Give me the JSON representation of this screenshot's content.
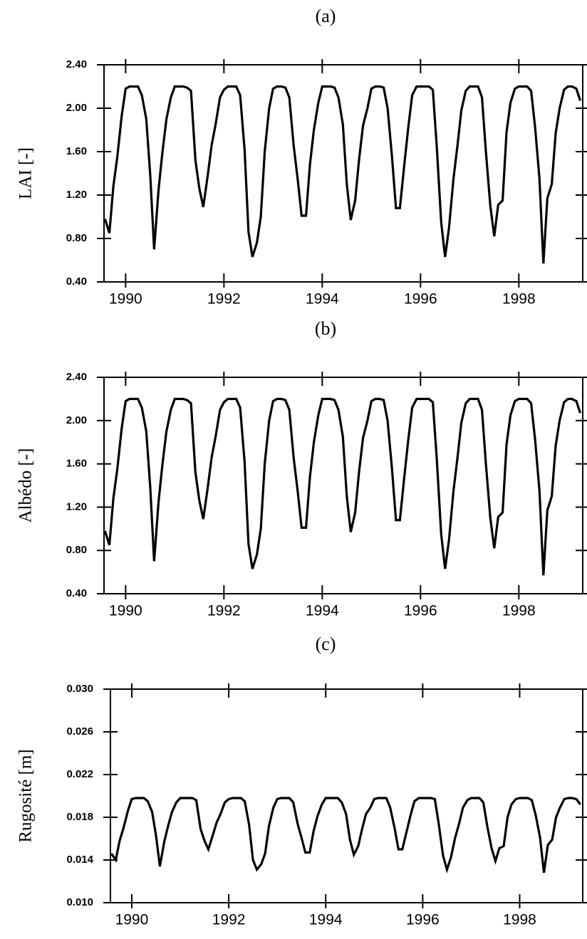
{
  "chart_data": [
    {
      "type": "line",
      "title": "(a)",
      "y_label": "LAI [-]",
      "x": [
        1989.58,
        1989.67,
        1989.75,
        1989.83,
        1989.92,
        1990.0,
        1990.08,
        1990.17,
        1990.25,
        1990.33,
        1990.42,
        1990.5,
        1990.58,
        1990.67,
        1990.75,
        1990.83,
        1990.92,
        1991.0,
        1991.08,
        1991.17,
        1991.25,
        1991.33,
        1991.42,
        1991.5,
        1991.58,
        1991.67,
        1991.75,
        1991.83,
        1991.92,
        1992.0,
        1992.08,
        1992.17,
        1992.25,
        1992.33,
        1992.42,
        1992.5,
        1992.58,
        1992.67,
        1992.75,
        1992.83,
        1992.92,
        1993.0,
        1993.08,
        1993.17,
        1993.25,
        1993.33,
        1993.42,
        1993.5,
        1993.58,
        1993.67,
        1993.75,
        1993.83,
        1993.92,
        1994.0,
        1994.08,
        1994.17,
        1994.25,
        1994.33,
        1994.42,
        1994.5,
        1994.58,
        1994.67,
        1994.75,
        1994.83,
        1994.92,
        1995.0,
        1995.08,
        1995.17,
        1995.25,
        1995.33,
        1995.42,
        1995.5,
        1995.58,
        1995.67,
        1995.75,
        1995.83,
        1995.92,
        1996.0,
        1996.08,
        1996.17,
        1996.25,
        1996.33,
        1996.42,
        1996.5,
        1996.58,
        1996.67,
        1996.75,
        1996.83,
        1996.92,
        1997.0,
        1997.08,
        1997.17,
        1997.25,
        1997.33,
        1997.42,
        1997.5,
        1997.58,
        1997.67,
        1997.75,
        1997.83,
        1997.92,
        1998.0,
        1998.08,
        1998.17,
        1998.25,
        1998.33,
        1998.42,
        1998.5,
        1998.58,
        1998.67,
        1998.75,
        1998.83,
        1998.92,
        1999.0,
        1999.08,
        1999.17,
        1999.25
      ],
      "values": [
        0.98,
        0.85,
        1.28,
        1.55,
        1.93,
        2.18,
        2.2,
        2.2,
        2.2,
        2.12,
        1.9,
        1.39,
        0.7,
        1.25,
        1.6,
        1.9,
        2.1,
        2.2,
        2.2,
        2.2,
        2.19,
        2.16,
        1.52,
        1.26,
        1.09,
        1.38,
        1.66,
        1.85,
        2.1,
        2.17,
        2.2,
        2.2,
        2.2,
        2.12,
        1.62,
        0.86,
        0.63,
        0.76,
        1.0,
        1.6,
        2.0,
        2.18,
        2.2,
        2.2,
        2.19,
        2.1,
        1.65,
        1.35,
        1.01,
        1.01,
        1.48,
        1.8,
        2.05,
        2.2,
        2.2,
        2.2,
        2.19,
        2.1,
        1.85,
        1.3,
        0.97,
        1.15,
        1.53,
        1.84,
        2.0,
        2.18,
        2.2,
        2.2,
        2.19,
        2.0,
        1.55,
        1.08,
        1.08,
        1.48,
        1.82,
        2.12,
        2.2,
        2.2,
        2.2,
        2.2,
        2.17,
        1.65,
        0.95,
        0.63,
        0.9,
        1.35,
        1.65,
        1.98,
        2.16,
        2.2,
        2.2,
        2.2,
        2.1,
        1.6,
        1.1,
        0.82,
        1.11,
        1.15,
        1.78,
        2.05,
        2.18,
        2.2,
        2.2,
        2.2,
        2.16,
        1.83,
        1.35,
        0.57,
        1.17,
        1.3,
        1.77,
        2.0,
        2.17,
        2.2,
        2.2,
        2.18,
        2.07
      ],
      "color": "#000000",
      "xlim": [
        1989.56,
        1999.3
      ],
      "xticks": [
        1990,
        1992,
        1994,
        1996,
        1998
      ],
      "ylim": [
        0.4,
        2.4
      ],
      "yticks": [
        {
          "value": 0.4,
          "label": "0.40"
        },
        {
          "value": 0.8,
          "label": "0.80"
        },
        {
          "value": 1.2,
          "label": "1.20"
        },
        {
          "value": 1.6,
          "label": "1.60"
        },
        {
          "value": 2.0,
          "label": "2.00"
        },
        {
          "value": 2.4,
          "label": "2.40"
        }
      ]
    },
    {
      "type": "line",
      "title": "(b)",
      "y_label": "Albédo [-]",
      "x": [
        1989.58,
        1989.67,
        1989.75,
        1989.83,
        1989.92,
        1990.0,
        1990.08,
        1990.17,
        1990.25,
        1990.33,
        1990.42,
        1990.5,
        1990.58,
        1990.67,
        1990.75,
        1990.83,
        1990.92,
        1991.0,
        1991.08,
        1991.17,
        1991.25,
        1991.33,
        1991.42,
        1991.5,
        1991.58,
        1991.67,
        1991.75,
        1991.83,
        1991.92,
        1992.0,
        1992.08,
        1992.17,
        1992.25,
        1992.33,
        1992.42,
        1992.5,
        1992.58,
        1992.67,
        1992.75,
        1992.83,
        1992.92,
        1993.0,
        1993.08,
        1993.17,
        1993.25,
        1993.33,
        1993.42,
        1993.5,
        1993.58,
        1993.67,
        1993.75,
        1993.83,
        1993.92,
        1994.0,
        1994.08,
        1994.17,
        1994.25,
        1994.33,
        1994.42,
        1994.5,
        1994.58,
        1994.67,
        1994.75,
        1994.83,
        1994.92,
        1995.0,
        1995.08,
        1995.17,
        1995.25,
        1995.33,
        1995.42,
        1995.5,
        1995.58,
        1995.67,
        1995.75,
        1995.83,
        1995.92,
        1996.0,
        1996.08,
        1996.17,
        1996.25,
        1996.33,
        1996.42,
        1996.5,
        1996.58,
        1996.67,
        1996.75,
        1996.83,
        1996.92,
        1997.0,
        1997.08,
        1997.17,
        1997.25,
        1997.33,
        1997.42,
        1997.5,
        1997.58,
        1997.67,
        1997.75,
        1997.83,
        1997.92,
        1998.0,
        1998.08,
        1998.17,
        1998.25,
        1998.33,
        1998.42,
        1998.5,
        1998.58,
        1998.67,
        1998.75,
        1998.83,
        1998.92,
        1999.0,
        1999.08,
        1999.17,
        1999.25
      ],
      "values": [
        0.98,
        0.85,
        1.28,
        1.55,
        1.93,
        2.18,
        2.2,
        2.2,
        2.2,
        2.12,
        1.9,
        1.39,
        0.7,
        1.25,
        1.6,
        1.9,
        2.1,
        2.2,
        2.2,
        2.2,
        2.19,
        2.16,
        1.52,
        1.26,
        1.09,
        1.38,
        1.66,
        1.85,
        2.1,
        2.17,
        2.2,
        2.2,
        2.2,
        2.12,
        1.62,
        0.86,
        0.63,
        0.76,
        1.0,
        1.6,
        2.0,
        2.18,
        2.2,
        2.2,
        2.19,
        2.1,
        1.65,
        1.35,
        1.01,
        1.01,
        1.48,
        1.8,
        2.05,
        2.2,
        2.2,
        2.2,
        2.19,
        2.1,
        1.85,
        1.3,
        0.97,
        1.15,
        1.53,
        1.84,
        2.0,
        2.18,
        2.2,
        2.2,
        2.19,
        2.0,
        1.55,
        1.08,
        1.08,
        1.48,
        1.82,
        2.12,
        2.2,
        2.2,
        2.2,
        2.2,
        2.17,
        1.65,
        0.95,
        0.63,
        0.9,
        1.35,
        1.65,
        1.98,
        2.16,
        2.2,
        2.2,
        2.2,
        2.1,
        1.6,
        1.1,
        0.82,
        1.11,
        1.15,
        1.78,
        2.05,
        2.18,
        2.2,
        2.2,
        2.2,
        2.16,
        1.83,
        1.35,
        0.57,
        1.17,
        1.3,
        1.77,
        2.0,
        2.17,
        2.2,
        2.2,
        2.18,
        2.07
      ],
      "color": "#000000",
      "xlim": [
        1989.56,
        1999.3
      ],
      "xticks": [
        1990,
        1992,
        1994,
        1996,
        1998
      ],
      "ylim": [
        0.4,
        2.4
      ],
      "yticks": [
        {
          "value": 0.4,
          "label": "0.40"
        },
        {
          "value": 0.8,
          "label": "0.80"
        },
        {
          "value": 1.2,
          "label": "1.20"
        },
        {
          "value": 1.6,
          "label": "1.60"
        },
        {
          "value": 2.0,
          "label": "2.00"
        },
        {
          "value": 2.4,
          "label": "2.40"
        }
      ]
    },
    {
      "type": "line",
      "title": "(c)",
      "y_label": "Rugosité [m]",
      "x": [
        1989.58,
        1989.67,
        1989.75,
        1989.83,
        1989.92,
        1990.0,
        1990.08,
        1990.17,
        1990.25,
        1990.33,
        1990.42,
        1990.5,
        1990.58,
        1990.67,
        1990.75,
        1990.83,
        1990.92,
        1991.0,
        1991.08,
        1991.17,
        1991.25,
        1991.33,
        1991.42,
        1991.5,
        1991.58,
        1991.67,
        1991.75,
        1991.83,
        1991.92,
        1992.0,
        1992.08,
        1992.17,
        1992.25,
        1992.33,
        1992.42,
        1992.5,
        1992.58,
        1992.67,
        1992.75,
        1992.83,
        1992.92,
        1993.0,
        1993.08,
        1993.17,
        1993.25,
        1993.33,
        1993.42,
        1993.5,
        1993.58,
        1993.67,
        1993.75,
        1993.83,
        1993.92,
        1994.0,
        1994.08,
        1994.17,
        1994.25,
        1994.33,
        1994.42,
        1994.5,
        1994.58,
        1994.67,
        1994.75,
        1994.83,
        1994.92,
        1995.0,
        1995.08,
        1995.17,
        1995.25,
        1995.33,
        1995.42,
        1995.5,
        1995.58,
        1995.67,
        1995.75,
        1995.83,
        1995.92,
        1996.0,
        1996.08,
        1996.17,
        1996.25,
        1996.33,
        1996.42,
        1996.5,
        1996.58,
        1996.67,
        1996.75,
        1996.83,
        1996.92,
        1997.0,
        1997.08,
        1997.17,
        1997.25,
        1997.33,
        1997.42,
        1997.5,
        1997.58,
        1997.67,
        1997.75,
        1997.83,
        1997.92,
        1998.0,
        1998.08,
        1998.17,
        1998.25,
        1998.33,
        1998.42,
        1998.5,
        1998.58,
        1998.67,
        1998.75,
        1998.83,
        1998.92,
        1999.0,
        1999.08,
        1999.17,
        1999.25
      ],
      "values": [
        0.0146,
        0.014,
        0.0158,
        0.017,
        0.0186,
        0.0197,
        0.0198,
        0.0198,
        0.0198,
        0.0195,
        0.0185,
        0.0163,
        0.0134,
        0.0157,
        0.0172,
        0.0185,
        0.0194,
        0.0198,
        0.0198,
        0.0198,
        0.0198,
        0.0196,
        0.0169,
        0.0158,
        0.015,
        0.0163,
        0.0175,
        0.0183,
        0.0194,
        0.0197,
        0.0198,
        0.0198,
        0.0198,
        0.0195,
        0.0173,
        0.014,
        0.0131,
        0.0136,
        0.0146,
        0.0172,
        0.0189,
        0.0197,
        0.0198,
        0.0198,
        0.0198,
        0.0194,
        0.0174,
        0.0161,
        0.0147,
        0.0147,
        0.0167,
        0.0181,
        0.0192,
        0.0198,
        0.0198,
        0.0198,
        0.0198,
        0.0194,
        0.0183,
        0.0159,
        0.0145,
        0.0153,
        0.0169,
        0.0183,
        0.0189,
        0.0197,
        0.0198,
        0.0198,
        0.0198,
        0.0189,
        0.017,
        0.015,
        0.015,
        0.0167,
        0.0182,
        0.0195,
        0.0198,
        0.0198,
        0.0198,
        0.0198,
        0.0197,
        0.0174,
        0.0144,
        0.0131,
        0.0142,
        0.0161,
        0.0174,
        0.0189,
        0.0196,
        0.0198,
        0.0198,
        0.0198,
        0.0194,
        0.0172,
        0.0151,
        0.0139,
        0.0151,
        0.0153,
        0.018,
        0.0192,
        0.0197,
        0.0198,
        0.0198,
        0.0198,
        0.0196,
        0.0182,
        0.0161,
        0.0128,
        0.0154,
        0.0159,
        0.018,
        0.0189,
        0.0197,
        0.0198,
        0.0198,
        0.0197,
        0.0192
      ],
      "color": "#000000",
      "xlim": [
        1989.56,
        1999.3
      ],
      "xticks": [
        1990,
        1992,
        1994,
        1996,
        1998
      ],
      "ylim": [
        0.01,
        0.03
      ],
      "yticks": [
        {
          "value": 0.01,
          "label": "0.010"
        },
        {
          "value": 0.014,
          "label": "0.014"
        },
        {
          "value": 0.018,
          "label": "0.018"
        },
        {
          "value": 0.022,
          "label": "0.022"
        },
        {
          "value": 0.026,
          "label": "0.026"
        },
        {
          "value": 0.03,
          "label": "0.030"
        }
      ]
    }
  ]
}
